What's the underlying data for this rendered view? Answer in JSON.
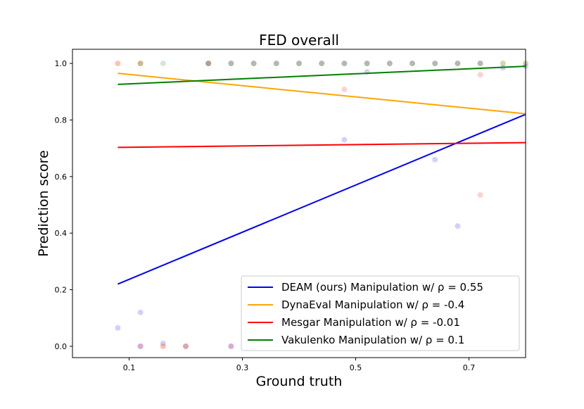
{
  "chart_data": {
    "type": "scatter",
    "title": "FED overall",
    "xlabel": "Ground truth",
    "ylabel": "Prediction score",
    "xlim": [
      0.0,
      0.8
    ],
    "ylim": [
      -0.04,
      1.05
    ],
    "xticks": [
      "0.1",
      "0.3",
      "0.5",
      "0.7"
    ],
    "yticks": [
      "0.0",
      "0.2",
      "0.4",
      "0.6",
      "0.8",
      "1.0"
    ],
    "legend_position": "lower-right",
    "grid": false,
    "series": [
      {
        "name": "DEAM (ours) Manipulation w/ ρ = 0.55",
        "color": "#0000ff",
        "line": {
          "x": [
            0.08,
            0.8
          ],
          "y": [
            0.22,
            0.82
          ]
        },
        "points": [
          [
            0.08,
            0.065
          ],
          [
            0.12,
            0.12
          ],
          [
            0.12,
            0.0
          ],
          [
            0.16,
            0.01
          ],
          [
            0.2,
            0.0
          ],
          [
            0.28,
            0.0
          ],
          [
            0.24,
            1.0
          ],
          [
            0.28,
            1.0
          ],
          [
            0.32,
            1.0
          ],
          [
            0.36,
            1.0
          ],
          [
            0.4,
            1.0
          ],
          [
            0.44,
            1.0
          ],
          [
            0.48,
            0.73
          ],
          [
            0.48,
            1.0
          ],
          [
            0.52,
            0.97
          ],
          [
            0.52,
            1.0
          ],
          [
            0.56,
            1.0
          ],
          [
            0.6,
            1.0
          ],
          [
            0.64,
            0.66
          ],
          [
            0.64,
            1.0
          ],
          [
            0.68,
            0.425
          ],
          [
            0.68,
            1.0
          ],
          [
            0.72,
            1.0
          ],
          [
            0.76,
            0.985
          ],
          [
            0.8,
            0.99
          ]
        ]
      },
      {
        "name": "DynaEval Manipulation w/ ρ = -0.4",
        "color": "#ffa500",
        "line": {
          "x": [
            0.08,
            0.8
          ],
          "y": [
            0.965,
            0.822
          ]
        },
        "points": [
          [
            0.08,
            1.0
          ],
          [
            0.12,
            1.0
          ],
          [
            0.24,
            1.0
          ],
          [
            0.28,
            1.0
          ],
          [
            0.32,
            1.0
          ],
          [
            0.36,
            1.0
          ],
          [
            0.4,
            1.0
          ],
          [
            0.44,
            1.0
          ],
          [
            0.48,
            1.0
          ],
          [
            0.52,
            1.0
          ],
          [
            0.56,
            1.0
          ],
          [
            0.6,
            1.0
          ],
          [
            0.64,
            1.0
          ],
          [
            0.68,
            1.0
          ],
          [
            0.72,
            1.0
          ],
          [
            0.76,
            1.0
          ],
          [
            0.8,
            1.0
          ],
          [
            0.2,
            0.0
          ],
          [
            0.16,
            0.0
          ]
        ]
      },
      {
        "name": "Mesgar Manipulation w/ ρ = -0.01",
        "color": "#ff0000",
        "line": {
          "x": [
            0.08,
            0.8
          ],
          "y": [
            0.703,
            0.72
          ]
        },
        "points": [
          [
            0.48,
            0.908
          ],
          [
            0.72,
            0.96
          ],
          [
            0.72,
            0.535
          ],
          [
            0.2,
            0.0
          ],
          [
            0.16,
            0.0
          ],
          [
            0.12,
            0.0
          ],
          [
            0.28,
            0.0
          ],
          [
            0.24,
            1.0
          ],
          [
            0.08,
            1.0
          ],
          [
            0.12,
            1.0
          ]
        ]
      },
      {
        "name": "Vakulenko Manipulation w/ ρ = 0.1",
        "color": "#008000",
        "line": {
          "x": [
            0.08,
            0.8
          ],
          "y": [
            0.926,
            0.99
          ]
        },
        "points": [
          [
            0.16,
            1.0
          ],
          [
            0.12,
            1.0
          ],
          [
            0.24,
            1.0
          ],
          [
            0.28,
            1.0
          ],
          [
            0.32,
            1.0
          ],
          [
            0.36,
            1.0
          ],
          [
            0.4,
            1.0
          ],
          [
            0.44,
            1.0
          ],
          [
            0.48,
            1.0
          ],
          [
            0.52,
            1.0
          ],
          [
            0.56,
            1.0
          ],
          [
            0.6,
            1.0
          ],
          [
            0.64,
            1.0
          ],
          [
            0.68,
            1.0
          ],
          [
            0.72,
            1.0
          ],
          [
            0.76,
            1.0
          ],
          [
            0.8,
            1.0
          ]
        ]
      }
    ]
  }
}
